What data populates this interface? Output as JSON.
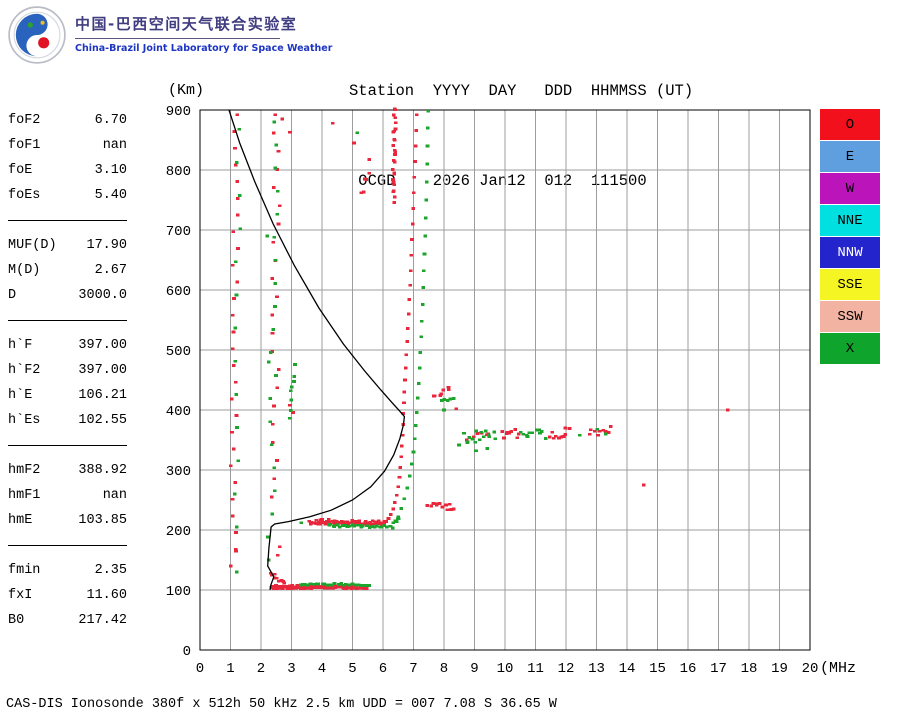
{
  "header": {
    "lab_name_cn": "中国-巴西空间天气联合实验室",
    "lab_name_en": "China-Brazil Joint Laboratory for Space Weather",
    "station_line1": "Station  YYYY  DAY   DDD  HHMMSS (UT)",
    "station_line2": " OCGD    2026 Jan12  012  111500"
  },
  "parameters": {
    "groups": [
      {
        "rows": [
          {
            "label": "foF2",
            "value": "6.70"
          },
          {
            "label": "foF1",
            "value": "nan"
          },
          {
            "label": "foE",
            "value": "3.10"
          },
          {
            "label": "foEs",
            "value": "5.40"
          }
        ]
      },
      {
        "rows": [
          {
            "label": "MUF(D)",
            "value": "17.90"
          },
          {
            "label": "M(D)",
            "value": "2.67"
          },
          {
            "label": "D",
            "value": "3000.0"
          }
        ]
      },
      {
        "rows": [
          {
            "label": "h`F",
            "value": "397.00"
          },
          {
            "label": "h`F2",
            "value": "397.00"
          },
          {
            "label": "h`E",
            "value": "106.21"
          },
          {
            "label": "h`Es",
            "value": "102.55"
          }
        ]
      },
      {
        "rows": [
          {
            "label": "hmF2",
            "value": "388.92"
          },
          {
            "label": "hmF1",
            "value": "nan"
          },
          {
            "label": "hmE",
            "value": "103.85"
          }
        ]
      },
      {
        "rows": [
          {
            "label": "fmin",
            "value": "2.35"
          },
          {
            "label": "fxI",
            "value": "11.60"
          },
          {
            "label": "B0",
            "value": "217.42"
          }
        ]
      }
    ]
  },
  "legend": [
    {
      "label": "O",
      "color": "#f2101d",
      "text_color": "#000000"
    },
    {
      "label": "E",
      "color": "#5f9fe0",
      "text_color": "#000000"
    },
    {
      "label": "W",
      "color": "#bb14bb",
      "text_color": "#000000"
    },
    {
      "label": "NNE",
      "color": "#00e0e0",
      "text_color": "#000000"
    },
    {
      "label": "NNW",
      "color": "#2424cc",
      "text_color": "#ffffff"
    },
    {
      "label": "SSE",
      "color": "#f5f523",
      "text_color": "#000000"
    },
    {
      "label": "SSW",
      "color": "#f2b3a2",
      "text_color": "#000000"
    },
    {
      "label": "X",
      "color": "#0fa42c",
      "text_color": "#000000"
    }
  ],
  "footer": {
    "status_line": "CAS-DIS Ionosonde 380f x 512h 50 kHz 2.5 km UDD = 007 7.08 S 36.65 W"
  },
  "chart_data": {
    "type": "scatter",
    "title": "Ionogram OCGD 2026 Jan12 012 111500 UT",
    "xlabel": "(MHz)",
    "ylabel": "(Km)",
    "xlim": [
      0,
      20
    ],
    "ylim": [
      0,
      900
    ],
    "x_tick_step": 1,
    "y_tick_step": 100,
    "grid": true,
    "grid_color": "#9d9d9d",
    "marker": {
      "width": 3.6,
      "height": 2.8
    },
    "profile_line": {
      "name": "electron-density-profile",
      "color": "#000000",
      "points": [
        [
          0.95,
          900
        ],
        [
          1.3,
          845
        ],
        [
          1.8,
          780
        ],
        [
          2.4,
          710
        ],
        [
          3.1,
          640
        ],
        [
          3.9,
          570
        ],
        [
          4.7,
          510
        ],
        [
          5.4,
          465
        ],
        [
          5.9,
          435
        ],
        [
          6.3,
          412
        ],
        [
          6.55,
          398
        ],
        [
          6.7,
          389
        ],
        [
          6.67,
          375
        ],
        [
          6.55,
          352
        ],
        [
          6.35,
          325
        ],
        [
          6.05,
          298
        ],
        [
          5.6,
          272
        ],
        [
          5.0,
          250
        ],
        [
          4.3,
          233
        ],
        [
          3.6,
          222
        ],
        [
          2.9,
          214
        ],
        [
          2.45,
          210
        ],
        [
          2.33,
          205
        ],
        [
          2.26,
          170
        ],
        [
          2.22,
          140
        ],
        [
          2.42,
          122
        ],
        [
          2.32,
          108
        ],
        [
          2.3,
          100
        ]
      ]
    },
    "series": [
      {
        "name": "O-mode echoes",
        "legend": "O",
        "color": "#e8273d",
        "points": [
          [
            6.1,
            214
          ],
          [
            6.18,
            219
          ],
          [
            6.26,
            226
          ],
          [
            6.33,
            235
          ],
          [
            6.39,
            246
          ],
          [
            6.45,
            258
          ],
          [
            6.5,
            272
          ],
          [
            6.54,
            288
          ],
          [
            6.57,
            304
          ],
          [
            6.6,
            322
          ],
          [
            6.62,
            340
          ],
          [
            6.64,
            358
          ],
          [
            6.66,
            376
          ],
          [
            6.67,
            394
          ],
          [
            6.69,
            412
          ],
          [
            6.7,
            430
          ],
          [
            6.72,
            450
          ],
          [
            6.74,
            470
          ],
          [
            6.76,
            492
          ],
          [
            6.79,
            514
          ],
          [
            6.81,
            536
          ],
          [
            6.84,
            560
          ],
          [
            6.86,
            584
          ],
          [
            6.89,
            608
          ],
          [
            6.91,
            632
          ],
          [
            6.93,
            658
          ],
          [
            6.95,
            684
          ],
          [
            6.97,
            710
          ],
          [
            6.99,
            736
          ],
          [
            7.01,
            762
          ],
          [
            7.03,
            788
          ],
          [
            7.05,
            814
          ],
          [
            7.07,
            840
          ],
          [
            7.09,
            866
          ],
          [
            7.1,
            892
          ],
          [
            14.55,
            275
          ],
          [
            17.3,
            400
          ],
          [
            8.4,
            402
          ],
          [
            2.95,
            408
          ],
          [
            3.05,
            396
          ],
          [
            2.7,
            885
          ],
          [
            2.95,
            863
          ],
          [
            4.35,
            878
          ],
          [
            5.05,
            845
          ],
          [
            1.18,
            165
          ],
          [
            2.62,
            172
          ],
          [
            2.55,
            158
          ]
        ],
        "segments": [
          [
            2.35,
            103.5,
            5.45,
            103.5,
            70,
            0.02,
            1.5
          ],
          [
            2.4,
            106.5,
            5.4,
            106.5,
            40,
            0.03,
            1.5
          ],
          [
            2.32,
            126,
            2.78,
            110,
            10,
            0.05,
            4
          ],
          [
            3.55,
            212,
            6.05,
            210,
            45,
            0.04,
            2.5
          ],
          [
            3.8,
            216,
            6.0,
            214,
            22,
            0.05,
            2
          ],
          [
            6.35,
            748,
            6.38,
            903,
            26,
            0.04,
            4
          ],
          [
            7.5,
            242,
            8.35,
            237,
            13,
            0.05,
            5
          ],
          [
            7.65,
            428,
            8.2,
            433,
            7,
            0.05,
            6
          ],
          [
            8.8,
            356,
            9.5,
            362,
            6,
            0.06,
            8
          ],
          [
            9.9,
            360,
            10.45,
            362,
            9,
            0.05,
            8
          ],
          [
            11.45,
            359,
            12.1,
            364,
            10,
            0.05,
            8
          ],
          [
            12.75,
            362,
            13.45,
            366,
            9,
            0.05,
            7
          ],
          [
            1.08,
            140,
            1.22,
            892,
            28,
            0.1,
            0
          ],
          [
            2.42,
            255,
            2.55,
            892,
            22,
            0.13,
            0
          ],
          [
            5.3,
            762,
            5.58,
            812,
            6,
            0.05,
            10
          ]
        ]
      },
      {
        "name": "X-mode echoes",
        "legend": "X",
        "color": "#1ca52c",
        "points": [
          [
            6.5,
            222
          ],
          [
            6.6,
            236
          ],
          [
            6.7,
            252
          ],
          [
            6.8,
            270
          ],
          [
            6.88,
            290
          ],
          [
            6.94,
            310
          ],
          [
            7.0,
            330
          ],
          [
            7.04,
            352
          ],
          [
            7.08,
            374
          ],
          [
            7.11,
            396
          ],
          [
            7.14,
            420
          ],
          [
            7.17,
            444
          ],
          [
            7.2,
            470
          ],
          [
            7.22,
            496
          ],
          [
            7.25,
            522
          ],
          [
            7.27,
            548
          ],
          [
            7.3,
            576
          ],
          [
            7.32,
            604
          ],
          [
            7.34,
            632
          ],
          [
            7.36,
            660
          ],
          [
            7.38,
            690
          ],
          [
            7.4,
            720
          ],
          [
            7.42,
            750
          ],
          [
            7.44,
            780
          ],
          [
            7.45,
            810
          ],
          [
            7.46,
            840
          ],
          [
            7.47,
            870
          ],
          [
            7.48,
            898
          ],
          [
            8.0,
            400
          ],
          [
            12.45,
            358
          ],
          [
            13.02,
            368
          ],
          [
            9.05,
            332
          ],
          [
            9.42,
            336
          ],
          [
            3.32,
            212
          ],
          [
            5.15,
            862
          ],
          [
            2.2,
            690
          ],
          [
            2.26,
            480
          ],
          [
            1.2,
            130
          ],
          [
            13.3,
            360
          ]
        ],
        "segments": [
          [
            3.3,
            110,
            5.52,
            109,
            26,
            0.05,
            1.8
          ],
          [
            4.2,
            207,
            6.32,
            205.5,
            30,
            0.05,
            2.2
          ],
          [
            6.35,
            213,
            6.5,
            218,
            5,
            0.03,
            3
          ],
          [
            8.55,
            352,
            9.7,
            358,
            16,
            0.06,
            11
          ],
          [
            10.55,
            356,
            11.3,
            360,
            11,
            0.06,
            9
          ],
          [
            2.9,
            396,
            3.15,
            468,
            8,
            0.07,
            10
          ],
          [
            2.32,
            150,
            2.47,
            880,
            20,
            0.11,
            0
          ],
          [
            1.15,
            205,
            1.3,
            868,
            13,
            0.09,
            0
          ],
          [
            7.9,
            416,
            8.28,
            421,
            5,
            0.05,
            5
          ]
        ]
      }
    ]
  }
}
